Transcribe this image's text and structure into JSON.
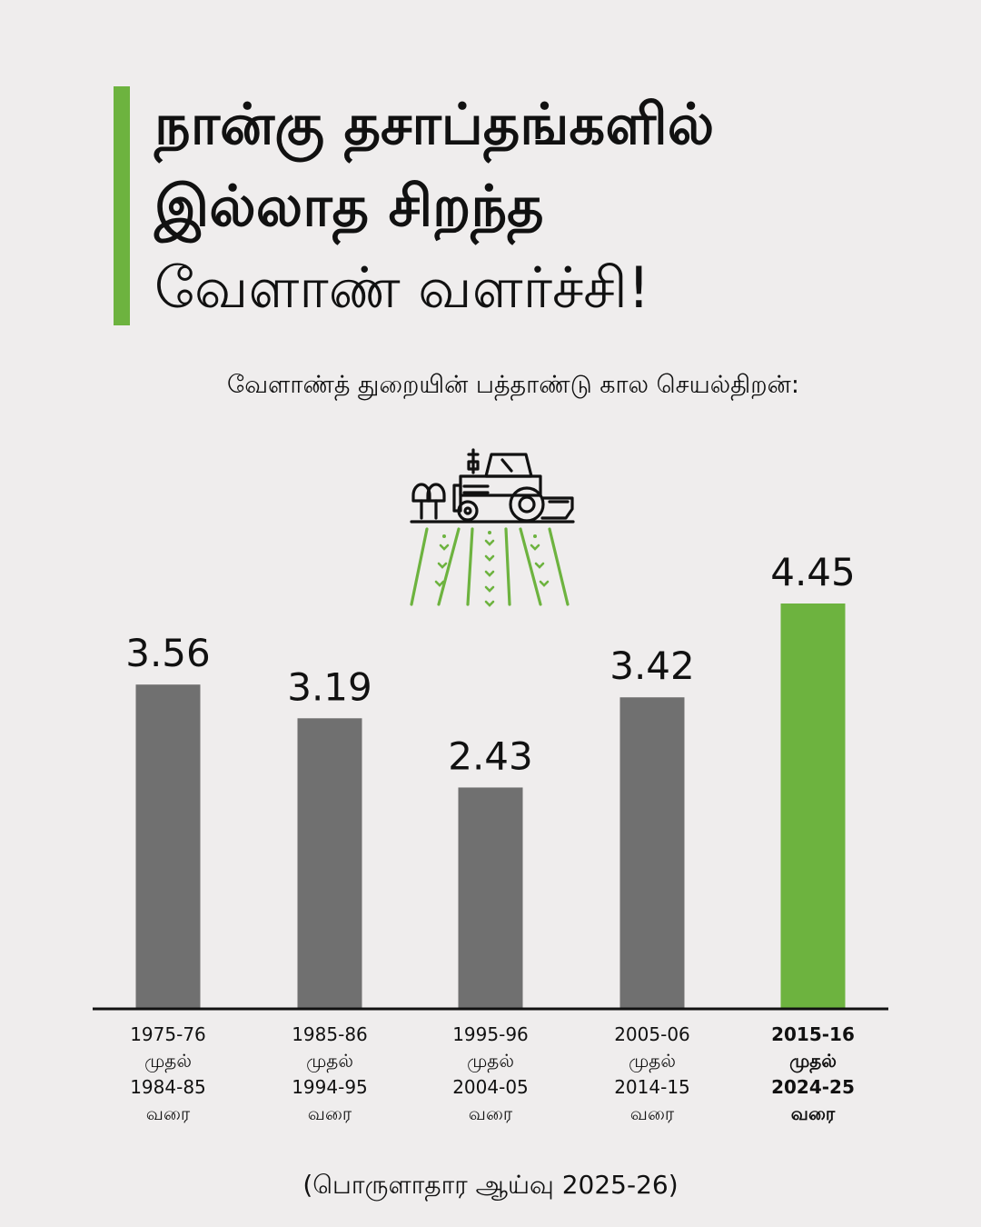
{
  "header": {
    "title_lines": [
      "நான்கு தசாப்தங்களில்",
      "இல்லாத சிறந்த",
      "வேளாண் வளர்ச்சி!"
    ],
    "subtitle": "வேளாண்த் துறையின் பத்தாண்டு கால செயல்திறன்:"
  },
  "icon": "tractor-field-icon",
  "colors": {
    "accent": "#6db33f",
    "bar": "#707070",
    "highlight": "#6db33f",
    "text": "#111111",
    "background": "#efeded"
  },
  "chart_data": {
    "type": "bar",
    "categories": [
      [
        "1975-76",
        "முதல்",
        "1984-85",
        "வரை"
      ],
      [
        "1985-86",
        "முதல்",
        "1994-95",
        "வரை"
      ],
      [
        "1995-96",
        "முதல்",
        "2004-05",
        "வரை"
      ],
      [
        "2005-06",
        "முதல்",
        "2014-15",
        "வரை"
      ],
      [
        "2015-16",
        "முதல்",
        "2024-25",
        "வரை"
      ]
    ],
    "values": [
      3.56,
      3.19,
      2.43,
      3.42,
      4.45
    ],
    "value_labels": [
      "3.56",
      "3.19",
      "2.43",
      "3.42",
      "4.45"
    ],
    "highlight_index": 4,
    "ylim": [
      0,
      4.45
    ],
    "grid": false,
    "legend": "none"
  },
  "source": "(பொருளாதார ஆய்வு 2025-26)"
}
